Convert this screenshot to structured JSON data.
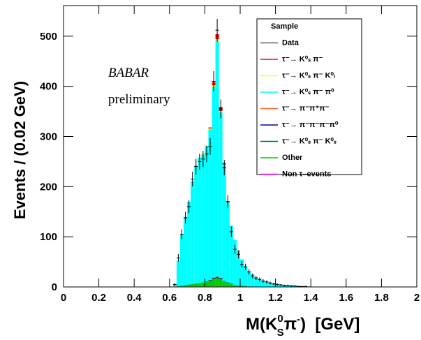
{
  "chart_data": {
    "type": "histogram",
    "y_label": "Events / (0.02 GeV)",
    "x_label": [
      "M(K",
      "0",
      "S",
      "π",
      "-",
      ")  [GeV]"
    ],
    "annotations": [
      "BABAR",
      "preliminary"
    ],
    "legend_title": "Sample",
    "xlim": [
      0,
      2
    ],
    "ylim": [
      0,
      561
    ],
    "xticks": [
      0,
      0.2,
      0.4,
      0.6,
      0.8,
      1,
      1.2,
      1.4,
      1.6,
      1.8,
      2
    ],
    "yticks": [
      0,
      100,
      200,
      300,
      400,
      500
    ],
    "bins": [
      0,
      0.62,
      0.64,
      0.66,
      0.68,
      0.7,
      0.72,
      0.74,
      0.76,
      0.78,
      0.8,
      0.82,
      0.84,
      0.86,
      0.88,
      0.9,
      0.92,
      0.94,
      0.96,
      0.98,
      1,
      1.02,
      1.04,
      1.06,
      1.08,
      1.1,
      1.12,
      1.14,
      1.16,
      1.18,
      1.2,
      1.22,
      1.24,
      1.26,
      1.28,
      1.3,
      1.32,
      1.34,
      1.36,
      1.38,
      1.4,
      2
    ],
    "data": {
      "name": "Data",
      "color": "#000000",
      "values": [
        0,
        5,
        58,
        105,
        138,
        160,
        215,
        240,
        250,
        255,
        265,
        280,
        410,
        512,
        355,
        238,
        170,
        110,
        75,
        65,
        45,
        40,
        30,
        22,
        18,
        15,
        12,
        10,
        8,
        6,
        5,
        4,
        3,
        3,
        2,
        2,
        1,
        1,
        1,
        0,
        0
      ],
      "errors": [
        0,
        2.2,
        7.6,
        10.2,
        11.7,
        12.6,
        14.7,
        15.5,
        15.8,
        16,
        16.3,
        16.7,
        20.2,
        22.6,
        18.8,
        15.4,
        13,
        10.5,
        8.7,
        8.1,
        6.7,
        6.3,
        5.5,
        4.7,
        4.2,
        3.9,
        3.5,
        3.2,
        2.8,
        2.4,
        2.2,
        2,
        1.7,
        1.7,
        1.4,
        1.4,
        1,
        1,
        1,
        0,
        0
      ]
    },
    "series": [
      {
        "name": "τ⁻→ K⁰ₛ π⁻",
        "color": "#ff0000",
        "values": [
          0,
          0,
          0,
          0,
          0,
          0,
          0,
          0,
          0,
          0,
          0,
          2,
          6,
          10,
          8,
          3,
          1,
          0,
          0,
          0,
          0,
          0,
          0,
          0,
          0,
          0,
          0,
          0,
          0,
          0,
          0,
          0,
          0,
          0,
          0,
          0,
          0,
          0,
          0,
          0,
          0
        ]
      },
      {
        "name": "τ⁻→ K⁰ₛ π⁻ K⁰ₗ",
        "color": "#ffff00",
        "values": [
          0,
          0,
          0,
          0,
          0,
          0,
          0,
          0,
          1,
          1,
          2,
          2,
          3,
          3,
          3,
          2,
          1,
          1,
          0,
          0,
          0,
          0,
          0,
          0,
          0,
          0,
          0,
          0,
          0,
          0,
          0,
          0,
          0,
          0,
          0,
          0,
          0,
          0,
          0,
          0,
          0
        ]
      },
      {
        "name": "τ⁻→ K⁰ₛ π⁻ π⁰",
        "color": "#00ffff",
        "values": [
          0,
          3,
          50,
          100,
          135,
          165,
          205,
          235,
          250,
          255,
          270,
          300,
          380,
          470,
          330,
          230,
          160,
          115,
          90,
          70,
          52,
          40,
          30,
          24,
          19,
          15,
          12,
          10,
          8,
          7,
          6,
          5,
          4,
          3,
          3,
          2,
          2,
          1,
          1,
          1,
          0
        ]
      },
      {
        "name": "τ⁻→ π⁻π⁺π⁻",
        "color": "#ff6633",
        "values": [
          0,
          0,
          0,
          0,
          0,
          0,
          0,
          0,
          0,
          0,
          0,
          0,
          1,
          1,
          0,
          0,
          0,
          0,
          0,
          0,
          0,
          0,
          0,
          0,
          0,
          0,
          0,
          0,
          0,
          0,
          0,
          0,
          0,
          0,
          0,
          0,
          0,
          0,
          0,
          0,
          0
        ]
      },
      {
        "name": "τ⁻→ π⁻π⁻π⁻π⁰",
        "color": "#000099",
        "values": [
          0,
          0,
          0,
          0,
          0,
          0,
          0,
          0,
          0,
          0,
          0,
          1,
          1,
          1,
          1,
          0,
          0,
          0,
          0,
          0,
          0,
          0,
          0,
          0,
          0,
          0,
          0,
          0,
          0,
          0,
          0,
          0,
          0,
          0,
          0,
          0,
          0,
          0,
          0,
          0,
          0
        ]
      },
      {
        "name": "τ⁻→ K⁰ₛ π⁻ K⁰ₛ",
        "color": "#006666",
        "values": [
          0,
          0,
          0,
          0,
          0,
          0,
          0,
          0,
          0,
          0,
          1,
          1,
          2,
          2,
          2,
          1,
          1,
          1,
          0,
          0,
          0,
          0,
          0,
          0,
          0,
          0,
          0,
          0,
          0,
          0,
          0,
          0,
          0,
          0,
          0,
          0,
          0,
          0,
          0,
          0,
          0
        ]
      },
      {
        "name": "Other",
        "color": "#00cc00",
        "values": [
          0,
          0,
          1,
          2,
          3,
          4,
          5,
          6,
          7,
          8,
          9,
          11,
          14,
          16,
          14,
          10,
          7,
          5,
          3,
          2,
          2,
          1,
          1,
          1,
          0,
          0,
          0,
          0,
          0,
          0,
          0,
          0,
          0,
          0,
          0,
          0,
          0,
          0,
          0,
          0,
          0
        ]
      },
      {
        "name": "Non τ–events",
        "color": "#ff00ff",
        "values": [
          0,
          1,
          1,
          1,
          1,
          1,
          1,
          1,
          1,
          1,
          1,
          1,
          1,
          1,
          1,
          1,
          1,
          1,
          1,
          1,
          1,
          1,
          0,
          0,
          0,
          0,
          0,
          0,
          0,
          0,
          0,
          0,
          0,
          0,
          0,
          0,
          0,
          0,
          0,
          0,
          0
        ]
      }
    ]
  }
}
